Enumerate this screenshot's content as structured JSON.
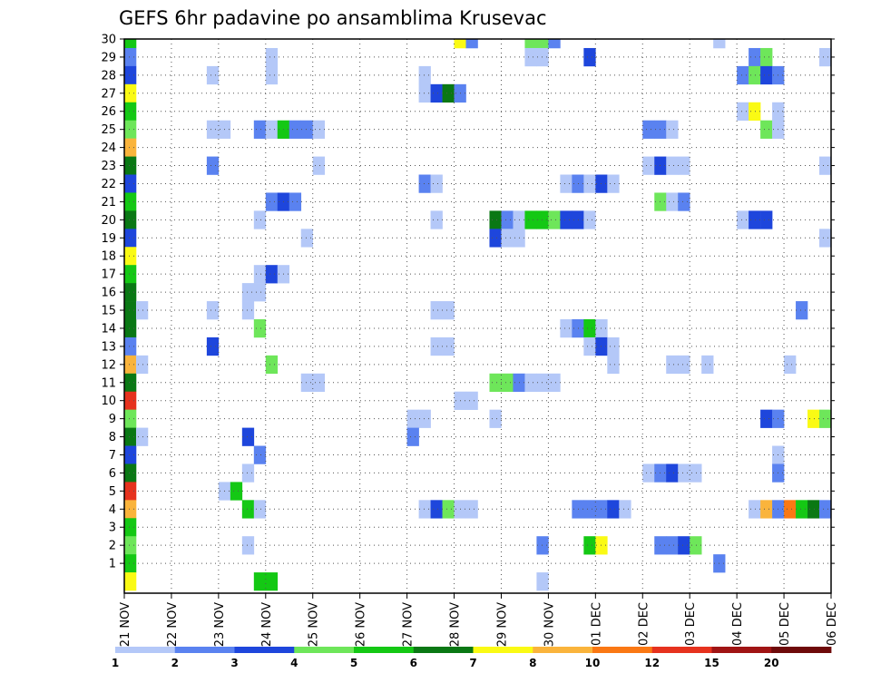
{
  "chart_data": {
    "type": "heatmap",
    "title": "GEFS 6hr padavine po ansamblima Krusevac",
    "xlabel": "",
    "ylabel": "",
    "x_tick_labels": [
      "21 NOV",
      "22 NOV",
      "23 NOV",
      "24 NOV",
      "25 NOV",
      "26 NOV",
      "27 NOV",
      "28 NOV",
      "29 NOV",
      "30 NOV",
      "01 DEC",
      "02 DEC",
      "03 DEC",
      "04 DEC",
      "05 DEC",
      "06 DEC"
    ],
    "y_tick_labels": [
      "1",
      "2",
      "3",
      "4",
      "5",
      "6",
      "7",
      "8",
      "9",
      "10",
      "11",
      "12",
      "13",
      "14",
      "15",
      "16",
      "17",
      "18",
      "19",
      "20",
      "21",
      "22",
      "23",
      "24",
      "25",
      "26",
      "27",
      "28",
      "29",
      "30"
    ],
    "x_unit": "6-hour step (0 = 21 NOV 00z)",
    "xlim": [
      0,
      60
    ],
    "ylim": [
      0,
      30
    ],
    "grid": true,
    "colorbar": {
      "labels": [
        "1",
        "2",
        "3",
        "4",
        "5",
        "6",
        "7",
        "8",
        "10",
        "12",
        "15",
        "20"
      ],
      "colors": [
        "#b4c8f8",
        "#5a82f0",
        "#1e46dc",
        "#6ee65a",
        "#14c814",
        "#0a7814",
        "#fafa14",
        "#fab43c",
        "#fa7814",
        "#e6321e",
        "#a01414",
        "#6e0a0a"
      ]
    },
    "cells": [
      {
        "x": 0,
        "y": 30,
        "v": 5
      },
      {
        "x": 0,
        "y": 29,
        "v": 2
      },
      {
        "x": 0,
        "y": 28,
        "v": 3
      },
      {
        "x": 0,
        "y": 27,
        "v": 7
      },
      {
        "x": 0,
        "y": 26,
        "v": 5
      },
      {
        "x": 0,
        "y": 25,
        "v": 4
      },
      {
        "x": 0,
        "y": 24,
        "v": 8
      },
      {
        "x": 0,
        "y": 23,
        "v": 6
      },
      {
        "x": 0,
        "y": 22,
        "v": 3
      },
      {
        "x": 0,
        "y": 21,
        "v": 5
      },
      {
        "x": 0,
        "y": 20,
        "v": 6
      },
      {
        "x": 0,
        "y": 19,
        "v": 3
      },
      {
        "x": 0,
        "y": 18,
        "v": 7
      },
      {
        "x": 0,
        "y": 17,
        "v": 5
      },
      {
        "x": 0,
        "y": 16,
        "v": 6
      },
      {
        "x": 0,
        "y": 15,
        "v": 6
      },
      {
        "x": 0,
        "y": 14,
        "v": 6
      },
      {
        "x": 0,
        "y": 13,
        "v": 2
      },
      {
        "x": 0,
        "y": 12,
        "v": 8
      },
      {
        "x": 0,
        "y": 11,
        "v": 6
      },
      {
        "x": 0,
        "y": 10,
        "v": 12
      },
      {
        "x": 0,
        "y": 9,
        "v": 4
      },
      {
        "x": 0,
        "y": 8,
        "v": 6
      },
      {
        "x": 0,
        "y": 7,
        "v": 3
      },
      {
        "x": 0,
        "y": 6,
        "v": 6
      },
      {
        "x": 0,
        "y": 5,
        "v": 12
      },
      {
        "x": 0,
        "y": 4,
        "v": 8
      },
      {
        "x": 0,
        "y": 3,
        "v": 5
      },
      {
        "x": 0,
        "y": 2,
        "v": 4
      },
      {
        "x": 0,
        "y": 1,
        "v": 5
      },
      {
        "x": 0,
        "y": 0,
        "v": 7
      },
      {
        "x": 1,
        "y": 15,
        "v": 1
      },
      {
        "x": 1,
        "y": 12,
        "v": 1
      },
      {
        "x": 1,
        "y": 8,
        "v": 1
      },
      {
        "x": 7,
        "y": 28,
        "v": 1
      },
      {
        "x": 7,
        "y": 25,
        "v": 1
      },
      {
        "x": 8,
        "y": 25,
        "v": 1
      },
      {
        "x": 7,
        "y": 23,
        "v": 2
      },
      {
        "x": 7,
        "y": 15,
        "v": 1
      },
      {
        "x": 7,
        "y": 13,
        "v": 3
      },
      {
        "x": 8,
        "y": 5,
        "v": 1
      },
      {
        "x": 9,
        "y": 5,
        "v": 5
      },
      {
        "x": 10,
        "y": 8,
        "v": 3
      },
      {
        "x": 10,
        "y": 4,
        "v": 5
      },
      {
        "x": 11,
        "y": 7,
        "v": 2
      },
      {
        "x": 11,
        "y": 4,
        "v": 1
      },
      {
        "x": 10,
        "y": 6,
        "v": 1
      },
      {
        "x": 10,
        "y": 2,
        "v": 1
      },
      {
        "x": 11,
        "y": 25,
        "v": 2
      },
      {
        "x": 11,
        "y": 20,
        "v": 1
      },
      {
        "x": 11,
        "y": 17,
        "v": 1
      },
      {
        "x": 10,
        "y": 16,
        "v": 1
      },
      {
        "x": 11,
        "y": 16,
        "v": 1
      },
      {
        "x": 10,
        "y": 15,
        "v": 1
      },
      {
        "x": 11,
        "y": 14,
        "v": 4
      },
      {
        "x": 11,
        "y": 0,
        "v": 5
      },
      {
        "x": 12,
        "y": 0,
        "v": 5
      },
      {
        "x": 12,
        "y": 29,
        "v": 1
      },
      {
        "x": 12,
        "y": 28,
        "v": 1
      },
      {
        "x": 12,
        "y": 25,
        "v": 1
      },
      {
        "x": 13,
        "y": 25,
        "v": 5
      },
      {
        "x": 14,
        "y": 25,
        "v": 2
      },
      {
        "x": 15,
        "y": 25,
        "v": 2
      },
      {
        "x": 16,
        "y": 25,
        "v": 1
      },
      {
        "x": 12,
        "y": 21,
        "v": 2
      },
      {
        "x": 13,
        "y": 21,
        "v": 3
      },
      {
        "x": 14,
        "y": 21,
        "v": 2
      },
      {
        "x": 12,
        "y": 17,
        "v": 3
      },
      {
        "x": 13,
        "y": 17,
        "v": 1
      },
      {
        "x": 12,
        "y": 12,
        "v": 4
      },
      {
        "x": 16,
        "y": 23,
        "v": 1
      },
      {
        "x": 15,
        "y": 19,
        "v": 1
      },
      {
        "x": 15,
        "y": 11,
        "v": 1
      },
      {
        "x": 16,
        "y": 11,
        "v": 1
      },
      {
        "x": 24,
        "y": 9,
        "v": 1
      },
      {
        "x": 25,
        "y": 9,
        "v": 1
      },
      {
        "x": 24,
        "y": 8,
        "v": 2
      },
      {
        "x": 25,
        "y": 28,
        "v": 1
      },
      {
        "x": 25,
        "y": 27,
        "v": 1
      },
      {
        "x": 26,
        "y": 27,
        "v": 3
      },
      {
        "x": 27,
        "y": 27,
        "v": 6
      },
      {
        "x": 28,
        "y": 27,
        "v": 2
      },
      {
        "x": 25,
        "y": 22,
        "v": 2
      },
      {
        "x": 26,
        "y": 22,
        "v": 1
      },
      {
        "x": 26,
        "y": 20,
        "v": 1
      },
      {
        "x": 26,
        "y": 15,
        "v": 1
      },
      {
        "x": 27,
        "y": 15,
        "v": 1
      },
      {
        "x": 26,
        "y": 13,
        "v": 1
      },
      {
        "x": 27,
        "y": 13,
        "v": 1
      },
      {
        "x": 28,
        "y": 10,
        "v": 1
      },
      {
        "x": 29,
        "y": 10,
        "v": 1
      },
      {
        "x": 25,
        "y": 4,
        "v": 1
      },
      {
        "x": 26,
        "y": 4,
        "v": 3
      },
      {
        "x": 27,
        "y": 4,
        "v": 4
      },
      {
        "x": 28,
        "y": 4,
        "v": 1
      },
      {
        "x": 29,
        "y": 4,
        "v": 1
      },
      {
        "x": 28,
        "y": 30,
        "v": 7
      },
      {
        "x": 29,
        "y": 30,
        "v": 2
      },
      {
        "x": 31,
        "y": 20,
        "v": 6
      },
      {
        "x": 32,
        "y": 20,
        "v": 2
      },
      {
        "x": 33,
        "y": 20,
        "v": 1
      },
      {
        "x": 34,
        "y": 20,
        "v": 5
      },
      {
        "x": 35,
        "y": 20,
        "v": 5
      },
      {
        "x": 36,
        "y": 20,
        "v": 4
      },
      {
        "x": 37,
        "y": 20,
        "v": 3
      },
      {
        "x": 38,
        "y": 20,
        "v": 3
      },
      {
        "x": 39,
        "y": 20,
        "v": 1
      },
      {
        "x": 31,
        "y": 19,
        "v": 3
      },
      {
        "x": 32,
        "y": 19,
        "v": 1
      },
      {
        "x": 33,
        "y": 19,
        "v": 1
      },
      {
        "x": 31,
        "y": 11,
        "v": 4
      },
      {
        "x": 32,
        "y": 11,
        "v": 4
      },
      {
        "x": 33,
        "y": 11,
        "v": 2
      },
      {
        "x": 34,
        "y": 11,
        "v": 1
      },
      {
        "x": 35,
        "y": 11,
        "v": 1
      },
      {
        "x": 36,
        "y": 11,
        "v": 1
      },
      {
        "x": 31,
        "y": 9,
        "v": 1
      },
      {
        "x": 34,
        "y": 30,
        "v": 4
      },
      {
        "x": 35,
        "y": 30,
        "v": 4
      },
      {
        "x": 36,
        "y": 30,
        "v": 2
      },
      {
        "x": 34,
        "y": 29,
        "v": 1
      },
      {
        "x": 35,
        "y": 29,
        "v": 1
      },
      {
        "x": 39,
        "y": 29,
        "v": 3
      },
      {
        "x": 37,
        "y": 22,
        "v": 1
      },
      {
        "x": 38,
        "y": 22,
        "v": 2
      },
      {
        "x": 39,
        "y": 22,
        "v": 1
      },
      {
        "x": 40,
        "y": 22,
        "v": 3
      },
      {
        "x": 41,
        "y": 22,
        "v": 1
      },
      {
        "x": 37,
        "y": 14,
        "v": 1
      },
      {
        "x": 38,
        "y": 14,
        "v": 2
      },
      {
        "x": 39,
        "y": 14,
        "v": 5
      },
      {
        "x": 40,
        "y": 14,
        "v": 1
      },
      {
        "x": 39,
        "y": 13,
        "v": 1
      },
      {
        "x": 40,
        "y": 13,
        "v": 3
      },
      {
        "x": 41,
        "y": 13,
        "v": 1
      },
      {
        "x": 41,
        "y": 12,
        "v": 1
      },
      {
        "x": 35,
        "y": 2,
        "v": 2
      },
      {
        "x": 39,
        "y": 2,
        "v": 5
      },
      {
        "x": 40,
        "y": 2,
        "v": 7
      },
      {
        "x": 35,
        "y": 0,
        "v": 1
      },
      {
        "x": 38,
        "y": 4,
        "v": 2
      },
      {
        "x": 39,
        "y": 4,
        "v": 2
      },
      {
        "x": 40,
        "y": 4,
        "v": 2
      },
      {
        "x": 41,
        "y": 4,
        "v": 3
      },
      {
        "x": 42,
        "y": 4,
        "v": 1
      },
      {
        "x": 44,
        "y": 25,
        "v": 2
      },
      {
        "x": 45,
        "y": 25,
        "v": 2
      },
      {
        "x": 46,
        "y": 25,
        "v": 1
      },
      {
        "x": 44,
        "y": 23,
        "v": 1
      },
      {
        "x": 45,
        "y": 23,
        "v": 3
      },
      {
        "x": 46,
        "y": 23,
        "v": 1
      },
      {
        "x": 47,
        "y": 23,
        "v": 1
      },
      {
        "x": 45,
        "y": 21,
        "v": 4
      },
      {
        "x": 46,
        "y": 21,
        "v": 1
      },
      {
        "x": 47,
        "y": 21,
        "v": 2
      },
      {
        "x": 46,
        "y": 12,
        "v": 1
      },
      {
        "x": 47,
        "y": 12,
        "v": 1
      },
      {
        "x": 44,
        "y": 6,
        "v": 1
      },
      {
        "x": 45,
        "y": 6,
        "v": 2
      },
      {
        "x": 46,
        "y": 6,
        "v": 3
      },
      {
        "x": 47,
        "y": 6,
        "v": 1
      },
      {
        "x": 48,
        "y": 6,
        "v": 1
      },
      {
        "x": 45,
        "y": 2,
        "v": 2
      },
      {
        "x": 46,
        "y": 2,
        "v": 2
      },
      {
        "x": 47,
        "y": 2,
        "v": 3
      },
      {
        "x": 48,
        "y": 2,
        "v": 4
      },
      {
        "x": 49,
        "y": 12,
        "v": 1
      },
      {
        "x": 50,
        "y": 1,
        "v": 2
      },
      {
        "x": 50,
        "y": 30,
        "v": 1
      },
      {
        "x": 53,
        "y": 29,
        "v": 2
      },
      {
        "x": 54,
        "y": 29,
        "v": 4
      },
      {
        "x": 52,
        "y": 28,
        "v": 2
      },
      {
        "x": 53,
        "y": 28,
        "v": 4
      },
      {
        "x": 54,
        "y": 28,
        "v": 3
      },
      {
        "x": 55,
        "y": 28,
        "v": 2
      },
      {
        "x": 52,
        "y": 26,
        "v": 1
      },
      {
        "x": 53,
        "y": 26,
        "v": 7
      },
      {
        "x": 55,
        "y": 26,
        "v": 1
      },
      {
        "x": 54,
        "y": 25,
        "v": 4
      },
      {
        "x": 55,
        "y": 25,
        "v": 1
      },
      {
        "x": 52,
        "y": 20,
        "v": 1
      },
      {
        "x": 53,
        "y": 20,
        "v": 3
      },
      {
        "x": 54,
        "y": 20,
        "v": 3
      },
      {
        "x": 57,
        "y": 15,
        "v": 2
      },
      {
        "x": 56,
        "y": 12,
        "v": 1
      },
      {
        "x": 54,
        "y": 9,
        "v": 3
      },
      {
        "x": 55,
        "y": 9,
        "v": 2
      },
      {
        "x": 58,
        "y": 9,
        "v": 7
      },
      {
        "x": 59,
        "y": 9,
        "v": 4
      },
      {
        "x": 55,
        "y": 7,
        "v": 1
      },
      {
        "x": 55,
        "y": 6,
        "v": 2
      },
      {
        "x": 53,
        "y": 4,
        "v": 1
      },
      {
        "x": 54,
        "y": 4,
        "v": 8
      },
      {
        "x": 55,
        "y": 4,
        "v": 2
      },
      {
        "x": 56,
        "y": 4,
        "v": 10
      },
      {
        "x": 57,
        "y": 4,
        "v": 5
      },
      {
        "x": 58,
        "y": 4,
        "v": 6
      },
      {
        "x": 59,
        "y": 4,
        "v": 2
      },
      {
        "x": 59,
        "y": 29,
        "v": 1
      },
      {
        "x": 59,
        "y": 23,
        "v": 1
      },
      {
        "x": 59,
        "y": 19,
        "v": 1
      }
    ]
  }
}
